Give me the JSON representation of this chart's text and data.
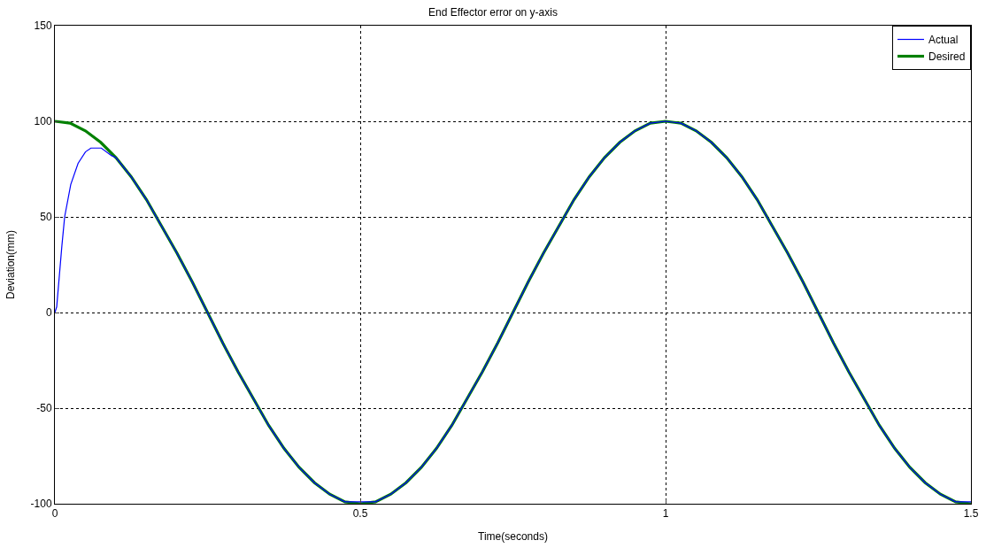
{
  "chart_data": {
    "type": "line",
    "title": "End Effector error on y-axis",
    "xlabel": "Time(seconds)",
    "ylabel": "Deviation(mm)",
    "xlim": [
      0,
      1.5
    ],
    "xticks": [
      0,
      0.5,
      1,
      1.5
    ],
    "ylim": [
      -100,
      150
    ],
    "yticks": [
      -100,
      -50,
      0,
      50,
      100,
      150
    ],
    "grid": true,
    "legend": "top right",
    "line_style": "solid",
    "marker": "none",
    "series": [
      {
        "name": "Actual",
        "color": "#0000ff",
        "x": [
          0,
          0.003,
          0.0115,
          0.016,
          0.026,
          0.038,
          0.05,
          0.059,
          0.076,
          0.093,
          0.1,
          0.125,
          0.15,
          0.175,
          0.2,
          0.225,
          0.25,
          0.275,
          0.3,
          0.325,
          0.35,
          0.375,
          0.4,
          0.425,
          0.45,
          0.475,
          0.5,
          0.525,
          0.55,
          0.575,
          0.6,
          0.625,
          0.65,
          0.675,
          0.7,
          0.725,
          0.75,
          0.775,
          0.8,
          0.825,
          0.85,
          0.875,
          0.9,
          0.925,
          0.95,
          0.975,
          1,
          1.025,
          1.05,
          1.075,
          1.1,
          1.125,
          1.15,
          1.175,
          1.2,
          1.225,
          1.25,
          1.275,
          1.3,
          1.325,
          1.35,
          1.375,
          1.4,
          1.425,
          1.45,
          1.475,
          1.5
        ],
        "values": [
          0,
          3,
          35,
          50,
          67,
          78,
          84,
          86,
          86,
          82,
          81,
          71,
          59,
          45,
          31,
          16,
          0,
          -16,
          -31,
          -45,
          -59,
          -71,
          -81,
          -89,
          -95,
          -99,
          -99,
          -99,
          -95,
          -89,
          -81,
          -71,
          -59,
          -45,
          -31,
          -16,
          0,
          16,
          31,
          45,
          59,
          71,
          81,
          89,
          95,
          99,
          100,
          99,
          95,
          89,
          81,
          71,
          59,
          45,
          31,
          16,
          0,
          -16,
          -31,
          -45,
          -59,
          -71,
          -81,
          -89,
          -95,
          -99,
          -99
        ]
      },
      {
        "name": "Desired",
        "color": "#008000",
        "x": [
          0,
          0.025,
          0.05,
          0.075,
          0.1,
          0.125,
          0.15,
          0.175,
          0.2,
          0.225,
          0.25,
          0.275,
          0.3,
          0.325,
          0.35,
          0.375,
          0.4,
          0.425,
          0.45,
          0.475,
          0.5,
          0.525,
          0.55,
          0.575,
          0.6,
          0.625,
          0.65,
          0.675,
          0.7,
          0.725,
          0.75,
          0.775,
          0.8,
          0.825,
          0.85,
          0.875,
          0.9,
          0.925,
          0.95,
          0.975,
          1,
          1.025,
          1.05,
          1.075,
          1.1,
          1.125,
          1.15,
          1.175,
          1.2,
          1.225,
          1.25,
          1.275,
          1.3,
          1.325,
          1.35,
          1.375,
          1.4,
          1.425,
          1.45,
          1.475,
          1.5
        ],
        "values": [
          100,
          99,
          95,
          89,
          81,
          71,
          59,
          45,
          31,
          16,
          0,
          -16,
          -31,
          -45,
          -59,
          -71,
          -81,
          -89,
          -95,
          -99,
          -100,
          -99,
          -95,
          -89,
          -81,
          -71,
          -59,
          -45,
          -31,
          -16,
          0,
          16,
          31,
          45,
          59,
          71,
          81,
          89,
          95,
          99,
          100,
          99,
          95,
          89,
          81,
          71,
          59,
          45,
          31,
          16,
          0,
          -16,
          -31,
          -45,
          -59,
          -71,
          -81,
          -89,
          -95,
          -99,
          -100
        ]
      }
    ]
  }
}
